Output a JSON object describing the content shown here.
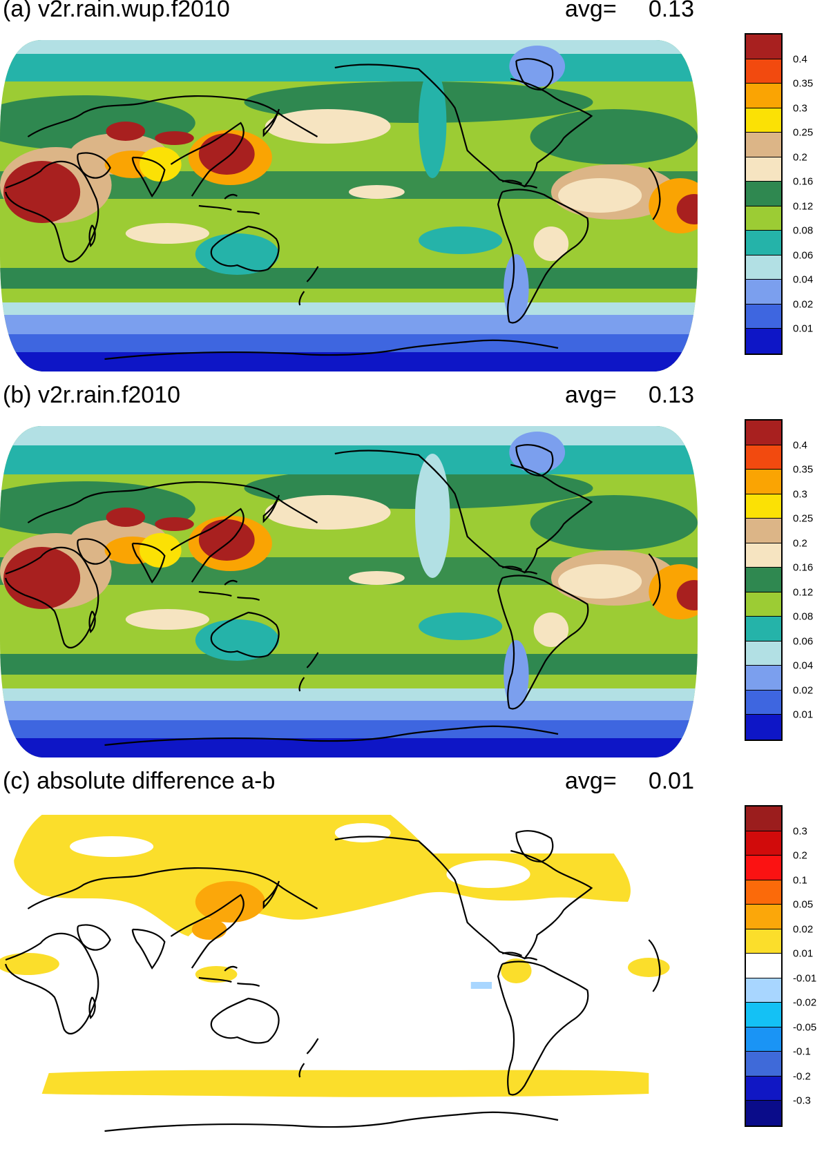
{
  "colors": {
    "precip_scale": [
      "#a8201f",
      "#f24a0f",
      "#faa403",
      "#fbe105",
      "#dcb587",
      "#f6e4c1",
      "#2f8850",
      "#9ccc34",
      "#25b3a9",
      "#b2e0e4",
      "#7b9fee",
      "#3e66e0",
      "#0e16c6"
    ],
    "diff_scale": [
      "#9b1d1d",
      "#d10b0b",
      "#fb1212",
      "#fb6a0a",
      "#fba70a",
      "#fbde2b",
      "#ffffff",
      "#a8d6ff",
      "#14c1f5",
      "#1a94f5",
      "#3f6ad9",
      "#1017c4",
      "#0a0c8a"
    ],
    "coastline": "#000000"
  },
  "panels": [
    {
      "title": "(a) v2r.rain.wup.f2010",
      "avg_label": "avg=",
      "avg_value": "0.13",
      "colorbar_labels": [
        "0.4",
        "0.35",
        "0.3",
        "0.25",
        "0.2",
        "0.16",
        "0.12",
        "0.08",
        "0.06",
        "0.04",
        "0.02",
        "0.01"
      ]
    },
    {
      "title": "(b) v2r.rain.f2010",
      "avg_label": "avg=",
      "avg_value": "0.13",
      "colorbar_labels": [
        "0.4",
        "0.35",
        "0.3",
        "0.25",
        "0.2",
        "0.16",
        "0.12",
        "0.08",
        "0.06",
        "0.04",
        "0.02",
        "0.01"
      ]
    },
    {
      "title": "(c) absolute difference a-b",
      "avg_label": "avg=",
      "avg_value": "0.01",
      "colorbar_labels": [
        "0.3",
        "0.2",
        "0.1",
        "0.05",
        "0.02",
        "0.01",
        "-0.01",
        "-0.02",
        "-0.05",
        "-0.1",
        "-0.2",
        "-0.3"
      ]
    }
  ]
}
